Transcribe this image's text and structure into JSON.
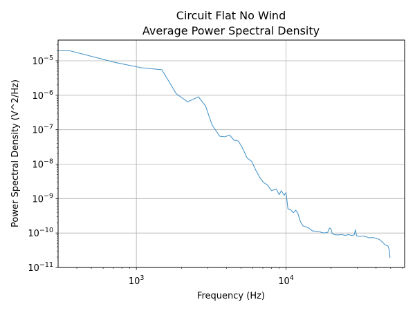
{
  "chart_data": {
    "type": "line",
    "title": "Circuit Flat No Wind",
    "subtitle": "Average Power Spectral Density",
    "xlabel": "Frequency (Hz)",
    "ylabel": "Power Spectral Density (V^2/Hz)",
    "xscale": "log",
    "yscale": "log",
    "xlim": [
      300,
      62000
    ],
    "ylim": [
      1e-11,
      4e-05
    ],
    "grid": true,
    "line_color": "#4b96c8",
    "x_ticks": [
      {
        "value": 1000,
        "base": "10",
        "exp": "3"
      },
      {
        "value": 10000,
        "base": "10",
        "exp": "4"
      }
    ],
    "y_ticks": [
      {
        "value": 1e-05,
        "base": "10",
        "exp": "−5"
      },
      {
        "value": 1e-06,
        "base": "10",
        "exp": "−6"
      },
      {
        "value": 1e-07,
        "base": "10",
        "exp": "−7"
      },
      {
        "value": 1e-08,
        "base": "10",
        "exp": "−8"
      },
      {
        "value": 1e-09,
        "base": "10",
        "exp": "−9"
      },
      {
        "value": 1e-10,
        "base": "10",
        "exp": "−10"
      },
      {
        "value": 1e-11,
        "base": "10",
        "exp": "−11"
      }
    ],
    "series": [
      {
        "x": [
          300,
          360,
          720,
          1080,
          1480,
          1850,
          2200,
          2600,
          2900,
          3200,
          3600,
          3900,
          4200,
          4500,
          4800,
          5100,
          5500,
          5900,
          6300,
          6700,
          7100,
          7500,
          8000,
          8600,
          9000,
          9300,
          9700,
          10000,
          10300,
          10700,
          11200,
          11600,
          12000,
          12500,
          13000,
          14000,
          15000,
          16500,
          18000,
          19000,
          19500,
          19900,
          20400,
          21000,
          22000,
          23500,
          25000,
          26000,
          27500,
          28500,
          29100,
          29600,
          30500,
          33000,
          36000,
          38000,
          40000,
          42000,
          44000,
          46000,
          48000,
          49000,
          49500
        ],
        "y": [
          1.95e-05,
          1.95e-05,
          9e-06,
          6.3e-06,
          5.5e-06,
          1.1e-06,
          6.5e-07,
          9e-07,
          4.9e-07,
          1.4e-07,
          6.5e-08,
          6.2e-08,
          7e-08,
          4.9e-08,
          4.7e-08,
          3e-08,
          1.5e-08,
          1.2e-08,
          6.5e-09,
          4e-09,
          2.9e-09,
          2.5e-09,
          1.7e-09,
          1.9e-09,
          1.3e-09,
          1.7e-09,
          1.25e-09,
          1.5e-09,
          5e-10,
          4.8e-10,
          3.9e-10,
          4.6e-10,
          3.7e-10,
          2.1e-10,
          1.6e-10,
          1.45e-10,
          1.15e-10,
          1.1e-10,
          1e-10,
          1.05e-10,
          1.4e-10,
          1.35e-10,
          9.5e-11,
          9e-11,
          8.8e-11,
          9e-11,
          8.5e-11,
          9e-11,
          8.5e-11,
          8.8e-11,
          1.25e-10,
          8.3e-11,
          8e-11,
          8.2e-11,
          7.3e-11,
          7.4e-11,
          7e-11,
          6.5e-11,
          5.5e-11,
          4.5e-11,
          4.2e-11,
          3.2e-11,
          1.9e-11
        ]
      }
    ]
  }
}
